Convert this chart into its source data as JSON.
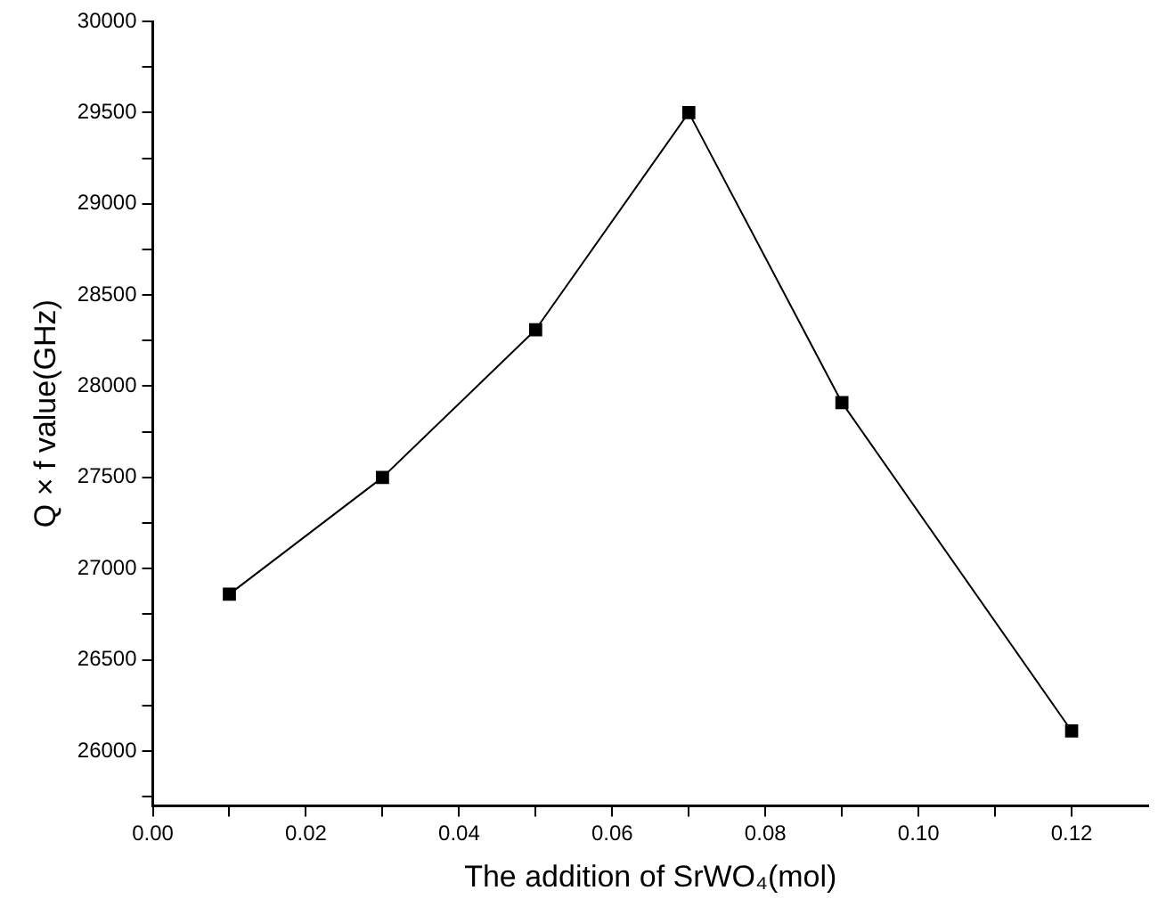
{
  "chart_data": {
    "type": "line",
    "xlabel": "The addition of SrWO₄(mol)",
    "ylabel": "Q × f value(GHz)",
    "x": [
      0.01,
      0.03,
      0.05,
      0.07,
      0.09,
      0.12
    ],
    "series": [
      {
        "color": "#000000",
        "values": [
          26860,
          27500,
          28310,
          29500,
          27910,
          26110
        ]
      }
    ],
    "xlim": [
      0,
      0.13
    ],
    "xticks": [
      {
        "value": 0,
        "label": "0.00"
      },
      {
        "value": 0.01,
        "label": null
      },
      {
        "value": 0.02,
        "label": "0.02"
      },
      {
        "value": 0.03,
        "label": null
      },
      {
        "value": 0.04,
        "label": "0.04"
      },
      {
        "value": 0.05,
        "label": null
      },
      {
        "value": 0.06,
        "label": "0.06"
      },
      {
        "value": 0.07,
        "label": null
      },
      {
        "value": 0.08,
        "label": "0.08"
      },
      {
        "value": 0.09,
        "label": null
      },
      {
        "value": 0.1,
        "label": "0.10"
      },
      {
        "value": 0.11,
        "label": null
      },
      {
        "value": 0.12,
        "label": "0.12"
      }
    ],
    "ylim": [
      25700,
      30000
    ],
    "yticks": [
      {
        "value": 25750,
        "label": null
      },
      26000,
      {
        "value": 26250,
        "label": null
      },
      26500,
      {
        "value": 26750,
        "label": null
      },
      27000,
      {
        "value": 27250,
        "label": null
      },
      27500,
      {
        "value": 27750,
        "label": null
      },
      28000,
      {
        "value": 28250,
        "label": null
      },
      28500,
      {
        "value": 28750,
        "label": null
      },
      29000,
      {
        "value": 29250,
        "label": null
      },
      29500,
      {
        "value": 29750,
        "label": null
      },
      30000
    ],
    "grid": false,
    "legend": false,
    "marker": "square",
    "line_style": "solid"
  }
}
